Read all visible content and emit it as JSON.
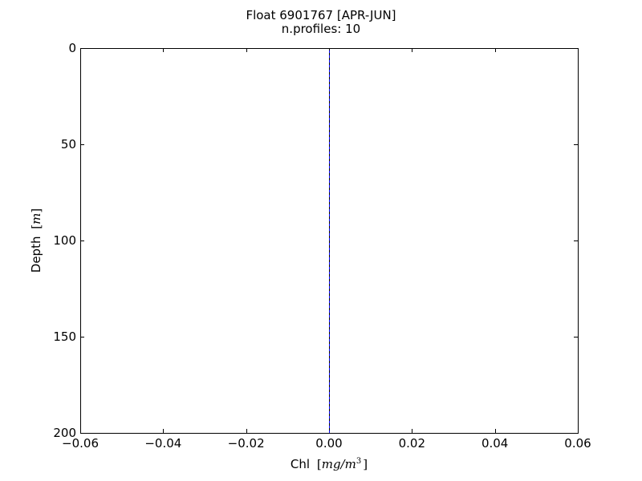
{
  "chart_data": {
    "type": "line",
    "title": "Float 6901767 [APR-JUN]",
    "subtitle": "n.profiles: 10",
    "xlabel": {
      "text": "Chl",
      "unit_prefix": "mg/m",
      "unit_exponent": "3"
    },
    "ylabel": {
      "text": "Depth",
      "unit": "m"
    },
    "xlim": [
      -0.06,
      0.06
    ],
    "ylim": [
      200,
      0
    ],
    "y_inverted": true,
    "xticks": [
      -0.06,
      -0.04,
      -0.02,
      0.0,
      0.02,
      0.04,
      0.06
    ],
    "xtick_labels": [
      "−0.06",
      "−0.04",
      "−0.02",
      "0.00",
      "0.02",
      "0.04",
      "0.06"
    ],
    "yticks": [
      0,
      50,
      100,
      150,
      200
    ],
    "ytick_labels": [
      "0",
      "50",
      "100",
      "150",
      "200"
    ],
    "grid": false,
    "legend": "none",
    "series": [
      {
        "x": [
          0,
          0
        ],
        "y": [
          0,
          200
        ],
        "color": "#0000ff",
        "style": "solid"
      },
      {
        "x": [
          0,
          0
        ],
        "y": [
          0,
          200
        ],
        "color": "#000000",
        "style": "dashed"
      }
    ]
  }
}
